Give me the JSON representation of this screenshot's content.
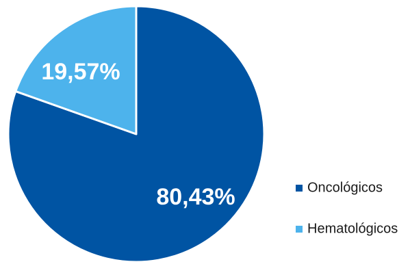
{
  "chart_data": {
    "type": "pie",
    "title": "",
    "legend_position": "right",
    "slices": [
      {
        "label": "Oncológicos",
        "value": 80.43,
        "value_label": "80,43%",
        "color": "#0054a3"
      },
      {
        "label": "Hematológicos",
        "value": 19.57,
        "value_label": "19,57%",
        "color": "#4db3ec"
      }
    ]
  }
}
